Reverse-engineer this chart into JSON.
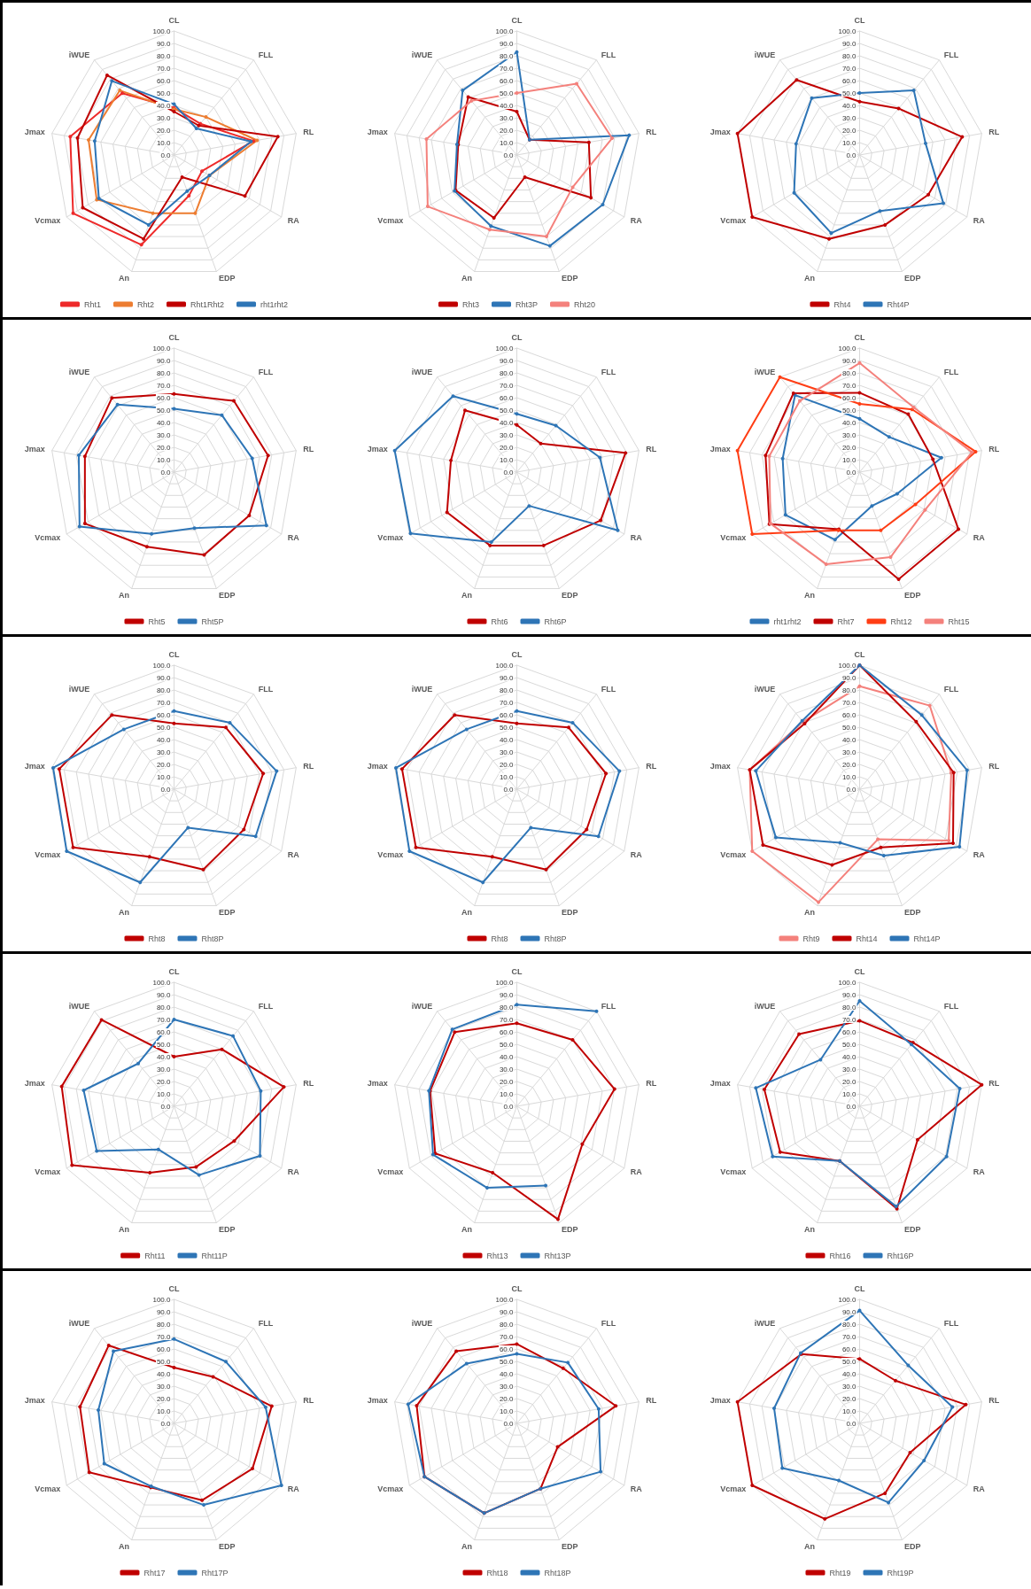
{
  "chart_data": [
    {
      "type": "radar",
      "categories": [
        "CL",
        "FLL",
        "RL",
        "RA",
        "EDP",
        "An",
        "Vcmax",
        "Jmax",
        "iWUE"
      ],
      "ylim": [
        0,
        100
      ],
      "yticks": [
        {
          "value": 0,
          "label": "0.0"
        },
        {
          "value": 10,
          "label": "10.0"
        },
        {
          "value": 20,
          "label": "20.0"
        },
        {
          "value": 30,
          "label": "30.0"
        },
        {
          "value": 40,
          "label": "40.0"
        },
        {
          "value": 50,
          "label": "50.0"
        },
        {
          "value": 60,
          "label": "60.0"
        },
        {
          "value": 70,
          "label": "70.0"
        },
        {
          "value": 80,
          "label": "80.0"
        },
        {
          "value": 90,
          "label": "90.0"
        },
        {
          "value": 100,
          "label": "100.0"
        }
      ],
      "grid": true,
      "legend": "bottom",
      "marker": "circle",
      "series": [
        {
          "name": "Rht1",
          "color": "#ee2a2a",
          "values": [
            38,
            33,
            65,
            26,
            35,
            77,
            94,
            85,
            65
          ]
        },
        {
          "name": "Rht2",
          "color": "#ed7d31",
          "values": [
            37,
            40,
            68,
            33,
            50,
            50,
            72,
            70,
            68
          ]
        },
        {
          "name": "Rht1Rht2",
          "color": "#c00000",
          "values": [
            35,
            31,
            85,
            66,
            19,
            72,
            85,
            79,
            84
          ]
        },
        {
          "name": "rht1rht2",
          "color": "#2e75b6",
          "values": [
            41,
            28,
            63,
            33,
            31,
            60,
            70,
            65,
            78
          ]
        }
      ]
    },
    {
      "type": "radar",
      "categories": [
        "CL",
        "FLL",
        "RL",
        "RA",
        "EDP",
        "An",
        "Vcmax",
        "Jmax",
        "iWUE"
      ],
      "ylim": [
        0,
        100
      ],
      "yticks": [
        {
          "value": 0,
          "label": "0.0"
        },
        {
          "value": 10,
          "label": "10.0"
        },
        {
          "value": 20,
          "label": "20.0"
        },
        {
          "value": 30,
          "label": "30.0"
        },
        {
          "value": 40,
          "label": "40.0"
        },
        {
          "value": 50,
          "label": "50.0"
        },
        {
          "value": 60,
          "label": "60.0"
        },
        {
          "value": 70,
          "label": "70.0"
        },
        {
          "value": 80,
          "label": "80.0"
        },
        {
          "value": 90,
          "label": "90.0"
        },
        {
          "value": 100,
          "label": "100.0"
        }
      ],
      "grid": true,
      "legend": "bottom",
      "marker": "circle",
      "series": [
        {
          "name": "Rht3",
          "color": "#c00000",
          "values": [
            35,
            16,
            59,
            69,
            19,
            54,
            57,
            48,
            61
          ]
        },
        {
          "name": "Rht3P",
          "color": "#2e75b6",
          "values": [
            83,
            16,
            92,
            80,
            78,
            61,
            58,
            49,
            68
          ]
        },
        {
          "name": "Rht20",
          "color": "#f4817c",
          "values": [
            50,
            75,
            78,
            52,
            70,
            64,
            83,
            74,
            57
          ]
        }
      ]
    },
    {
      "type": "radar",
      "categories": [
        "CL",
        "FLL",
        "RL",
        "RA",
        "EDP",
        "An",
        "Vcmax",
        "Jmax",
        "iWUE"
      ],
      "ylim": [
        0,
        100
      ],
      "yticks": [
        {
          "value": 0,
          "label": "0.0"
        },
        {
          "value": 10,
          "label": "10.0"
        },
        {
          "value": 20,
          "label": "20.0"
        },
        {
          "value": 30,
          "label": "30.0"
        },
        {
          "value": 40,
          "label": "40.0"
        },
        {
          "value": 50,
          "label": "50.0"
        },
        {
          "value": 60,
          "label": "60.0"
        },
        {
          "value": 70,
          "label": "70.0"
        },
        {
          "value": 80,
          "label": "80.0"
        },
        {
          "value": 90,
          "label": "90.0"
        },
        {
          "value": 100,
          "label": "100.0"
        }
      ],
      "grid": true,
      "legend": "bottom",
      "marker": "circle",
      "series": [
        {
          "name": "Rht4",
          "color": "#c00000",
          "values": [
            43,
            49,
            84,
            64,
            60,
            72,
            100,
            100,
            79
          ]
        },
        {
          "name": "Rht4P",
          "color": "#2e75b6",
          "values": [
            50,
            68,
            54,
            78,
            48,
            67,
            61,
            52,
            60
          ]
        }
      ]
    },
    {
      "type": "radar",
      "categories": [
        "CL",
        "FLL",
        "RL",
        "RA",
        "EDP",
        "An",
        "Vcmax",
        "Jmax",
        "iWUE"
      ],
      "ylim": [
        0,
        100
      ],
      "yticks": [
        {
          "value": 0,
          "label": "0.0"
        },
        {
          "value": 10,
          "label": "10.0"
        },
        {
          "value": 20,
          "label": "20.0"
        },
        {
          "value": 30,
          "label": "30.0"
        },
        {
          "value": 40,
          "label": "40.0"
        },
        {
          "value": 50,
          "label": "50.0"
        },
        {
          "value": 60,
          "label": "60.0"
        },
        {
          "value": 70,
          "label": "70.0"
        },
        {
          "value": 80,
          "label": "80.0"
        },
        {
          "value": 90,
          "label": "90.0"
        },
        {
          "value": 100,
          "label": "100.0"
        }
      ],
      "grid": true,
      "legend": "bottom",
      "marker": "circle",
      "series": [
        {
          "name": "Rht5",
          "color": "#c00000",
          "values": [
            63,
            75,
            77,
            70,
            71,
            64,
            83,
            73,
            78
          ]
        },
        {
          "name": "Rht5P",
          "color": "#2e75b6",
          "values": [
            51,
            60,
            64,
            86,
            48,
            53,
            88,
            78,
            71
          ]
        }
      ]
    },
    {
      "type": "radar",
      "categories": [
        "CL",
        "FLL",
        "RL",
        "RA",
        "EDP",
        "An",
        "Vcmax",
        "Jmax",
        "iWUE"
      ],
      "ylim": [
        0,
        100
      ],
      "yticks": [
        {
          "value": 0,
          "label": "0.0"
        },
        {
          "value": 10,
          "label": "10.0"
        },
        {
          "value": 20,
          "label": "20.0"
        },
        {
          "value": 30,
          "label": "30.0"
        },
        {
          "value": 40,
          "label": "40.0"
        },
        {
          "value": 50,
          "label": "50.0"
        },
        {
          "value": 60,
          "label": "60.0"
        },
        {
          "value": 70,
          "label": "70.0"
        },
        {
          "value": 80,
          "label": "80.0"
        },
        {
          "value": 90,
          "label": "90.0"
        },
        {
          "value": 100,
          "label": "100.0"
        }
      ],
      "grid": true,
      "legend": "bottom",
      "marker": "circle",
      "series": [
        {
          "name": "Rht6",
          "color": "#c00000",
          "values": [
            38,
            30,
            89,
            78,
            63,
            63,
            65,
            54,
            65
          ]
        },
        {
          "name": "Rht6P",
          "color": "#2e75b6",
          "values": [
            47,
            49,
            68,
            94,
            29,
            60,
            99,
            100,
            80
          ]
        }
      ]
    },
    {
      "type": "radar",
      "categories": [
        "CL",
        "FLL",
        "RL",
        "RA",
        "EDP",
        "An",
        "Vcmax",
        "Jmax",
        "iWUE"
      ],
      "ylim": [
        0,
        100
      ],
      "yticks": [
        {
          "value": 0,
          "label": "0.0"
        },
        {
          "value": 10,
          "label": "10.0"
        },
        {
          "value": 20,
          "label": "20.0"
        },
        {
          "value": 30,
          "label": "30.0"
        },
        {
          "value": 40,
          "label": "40.0"
        },
        {
          "value": 50,
          "label": "50.0"
        },
        {
          "value": 60,
          "label": "60.0"
        },
        {
          "value": 70,
          "label": "70.0"
        },
        {
          "value": 80,
          "label": "80.0"
        },
        {
          "value": 90,
          "label": "90.0"
        },
        {
          "value": 100,
          "label": "100.0"
        }
      ],
      "grid": true,
      "legend": "bottom",
      "marker": "circle",
      "series": [
        {
          "name": "rht1rht2",
          "color": "#2e75b6",
          "values": [
            43,
            37,
            67,
            35,
            29,
            58,
            69,
            63,
            81
          ]
        },
        {
          "name": "Rht7",
          "color": "#c00000",
          "values": [
            64,
            61,
            60,
            92,
            92,
            49,
            84,
            77,
            83
          ]
        },
        {
          "name": "Rht12",
          "color": "#ff3d14",
          "values": [
            55,
            66,
            95,
            52,
            50,
            50,
            100,
            100,
            100
          ]
        },
        {
          "name": "Rht15",
          "color": "#f4817c",
          "values": [
            88,
            68,
            92,
            61,
            73,
            79,
            83,
            74,
            75
          ]
        }
      ]
    },
    {
      "type": "radar",
      "categories": [
        "CL",
        "FLL",
        "RL",
        "RA",
        "EDP",
        "An",
        "Vcmax",
        "Jmax",
        "iWUE"
      ],
      "ylim": [
        0,
        100
      ],
      "yticks": [
        {
          "value": 0,
          "label": "0.0"
        },
        {
          "value": 10,
          "label": "10.0"
        },
        {
          "value": 20,
          "label": "20.0"
        },
        {
          "value": 30,
          "label": "30.0"
        },
        {
          "value": 40,
          "label": "40.0"
        },
        {
          "value": 50,
          "label": "50.0"
        },
        {
          "value": 60,
          "label": "60.0"
        },
        {
          "value": 70,
          "label": "70.0"
        },
        {
          "value": 80,
          "label": "80.0"
        },
        {
          "value": 90,
          "label": "90.0"
        },
        {
          "value": 100,
          "label": "100.0"
        }
      ],
      "grid": true,
      "legend": "bottom",
      "marker": "circle",
      "series": [
        {
          "name": "Rht8",
          "color": "#c00000",
          "values": [
            53,
            65,
            73,
            65,
            69,
            58,
            94,
            94,
            78
          ]
        },
        {
          "name": "Rht8P",
          "color": "#2e75b6",
          "values": [
            63,
            70,
            84,
            76,
            33,
            80,
            100,
            99,
            63
          ]
        }
      ]
    },
    {
      "type": "radar",
      "categories": [
        "CL",
        "FLL",
        "RL",
        "RA",
        "EDP",
        "An",
        "Vcmax",
        "Jmax",
        "iWUE"
      ],
      "ylim": [
        0,
        100
      ],
      "yticks": [
        {
          "value": 0,
          "label": "0.0"
        },
        {
          "value": 10,
          "label": "10.0"
        },
        {
          "value": 20,
          "label": "20.0"
        },
        {
          "value": 30,
          "label": "30.0"
        },
        {
          "value": 40,
          "label": "40.0"
        },
        {
          "value": 50,
          "label": "50.0"
        },
        {
          "value": 60,
          "label": "60.0"
        },
        {
          "value": 70,
          "label": "70.0"
        },
        {
          "value": 80,
          "label": "80.0"
        },
        {
          "value": 90,
          "label": "90.0"
        },
        {
          "value": 100,
          "label": "100.0"
        }
      ],
      "grid": true,
      "legend": "bottom",
      "marker": "circle",
      "series": [
        {
          "name": "Rht8",
          "color": "#c00000",
          "values": [
            53,
            65,
            73,
            65,
            69,
            58,
            94,
            94,
            78
          ]
        },
        {
          "name": "Rht8P",
          "color": "#2e75b6",
          "values": [
            63,
            70,
            84,
            76,
            33,
            80,
            100,
            99,
            63
          ]
        }
      ]
    },
    {
      "type": "radar",
      "categories": [
        "CL",
        "FLL",
        "RL",
        "RA",
        "EDP",
        "An",
        "Vcmax",
        "Jmax",
        "iWUE"
      ],
      "ylim": [
        0,
        100
      ],
      "yticks": [
        {
          "value": 0,
          "label": "0.0"
        },
        {
          "value": 10,
          "label": "10.0"
        },
        {
          "value": 20,
          "label": "20.0"
        },
        {
          "value": 30,
          "label": "30.0"
        },
        {
          "value": 40,
          "label": "40.0"
        },
        {
          "value": 50,
          "label": "50.0"
        },
        {
          "value": 60,
          "label": "60.0"
        },
        {
          "value": 70,
          "label": "70.0"
        },
        {
          "value": 80,
          "label": "80.0"
        },
        {
          "value": 90,
          "label": "90.0"
        },
        {
          "value": 100,
          "label": "100.0"
        }
      ],
      "grid": true,
      "legend": "bottom",
      "marker": "circle",
      "series": [
        {
          "name": "Rht9",
          "color": "#f4817c",
          "values": [
            83,
            88,
            75,
            83,
            43,
            97,
            100,
            90,
            71
          ]
        },
        {
          "name": "Rht14",
          "color": "#c00000",
          "values": [
            100,
            71,
            77,
            87,
            50,
            65,
            90,
            90,
            69
          ]
        },
        {
          "name": "Rht14P",
          "color": "#2e75b6",
          "values": [
            100,
            78,
            88,
            93,
            57,
            46,
            78,
            85,
            72
          ]
        }
      ]
    },
    {
      "type": "radar",
      "categories": [
        "CL",
        "FLL",
        "RL",
        "RA",
        "EDP",
        "An",
        "Vcmax",
        "Jmax",
        "iWUE"
      ],
      "ylim": [
        0,
        100
      ],
      "yticks": [
        {
          "value": 0,
          "label": "0.0"
        },
        {
          "value": 10,
          "label": "10.0"
        },
        {
          "value": 20,
          "label": "20.0"
        },
        {
          "value": 30,
          "label": "30.0"
        },
        {
          "value": 40,
          "label": "40.0"
        },
        {
          "value": 50,
          "label": "50.0"
        },
        {
          "value": 60,
          "label": "60.0"
        },
        {
          "value": 70,
          "label": "70.0"
        },
        {
          "value": 80,
          "label": "80.0"
        },
        {
          "value": 90,
          "label": "90.0"
        },
        {
          "value": 100,
          "label": "100.0"
        }
      ],
      "grid": true,
      "legend": "bottom",
      "marker": "circle",
      "series": [
        {
          "name": "Rht11",
          "color": "#c00000",
          "values": [
            40,
            60,
            90,
            56,
            52,
            57,
            95,
            92,
            91
          ]
        },
        {
          "name": "Rht11P",
          "color": "#2e75b6",
          "values": [
            70,
            74,
            71,
            80,
            59,
            37,
            72,
            74,
            45
          ]
        }
      ]
    },
    {
      "type": "radar",
      "categories": [
        "CL",
        "FLL",
        "RL",
        "RA",
        "EDP",
        "An",
        "Vcmax",
        "Jmax",
        "iWUE"
      ],
      "ylim": [
        0,
        100
      ],
      "yticks": [
        {
          "value": 0,
          "label": "0.0"
        },
        {
          "value": 10,
          "label": "10.0"
        },
        {
          "value": 20,
          "label": "20.0"
        },
        {
          "value": 30,
          "label": "30.0"
        },
        {
          "value": 40,
          "label": "40.0"
        },
        {
          "value": 50,
          "label": "50.0"
        },
        {
          "value": 60,
          "label": "60.0"
        },
        {
          "value": 70,
          "label": "70.0"
        },
        {
          "value": 80,
          "label": "80.0"
        },
        {
          "value": 90,
          "label": "90.0"
        },
        {
          "value": 100,
          "label": "100.0"
        }
      ],
      "grid": true,
      "legend": "bottom",
      "marker": "circle",
      "series": [
        {
          "name": "Rht13",
          "color": "#c00000",
          "values": [
            67,
            70,
            80,
            61,
            97,
            57,
            76,
            71,
            78
          ]
        },
        {
          "name": "Rht13P",
          "color": "#2e75b6",
          "values": [
            82,
            100,
            null,
            null,
            68,
            70,
            78,
            72,
            81
          ]
        }
      ]
    },
    {
      "type": "radar",
      "categories": [
        "CL",
        "FLL",
        "RL",
        "RA",
        "EDP",
        "An",
        "Vcmax",
        "Jmax",
        "iWUE"
      ],
      "ylim": [
        0,
        100
      ],
      "yticks": [
        {
          "value": 0,
          "label": "0.0"
        },
        {
          "value": 10,
          "label": "10.0"
        },
        {
          "value": 20,
          "label": "20.0"
        },
        {
          "value": 30,
          "label": "30.0"
        },
        {
          "value": 40,
          "label": "40.0"
        },
        {
          "value": 50,
          "label": "50.0"
        },
        {
          "value": 60,
          "label": "60.0"
        },
        {
          "value": 70,
          "label": "70.0"
        },
        {
          "value": 80,
          "label": "80.0"
        },
        {
          "value": 90,
          "label": "90.0"
        },
        {
          "value": 100,
          "label": "100.0"
        }
      ],
      "grid": true,
      "legend": "bottom",
      "marker": "circle",
      "series": [
        {
          "name": "Rht16",
          "color": "#c00000",
          "values": [
            69,
            67,
            100,
            54,
            88,
            47,
            74,
            78,
            76
          ]
        },
        {
          "name": "Rht16P",
          "color": "#2e75b6",
          "values": [
            85,
            65,
            82,
            81,
            86,
            47,
            81,
            85,
            49
          ]
        }
      ]
    },
    {
      "type": "radar",
      "categories": [
        "CL",
        "FLL",
        "RL",
        "RA",
        "EDP",
        "An",
        "Vcmax",
        "Jmax",
        "iWUE"
      ],
      "ylim": [
        0,
        100
      ],
      "yticks": [
        {
          "value": 0,
          "label": "0.0"
        },
        {
          "value": 10,
          "label": "10.0"
        },
        {
          "value": 20,
          "label": "20.0"
        },
        {
          "value": 30,
          "label": "30.0"
        },
        {
          "value": 40,
          "label": "40.0"
        },
        {
          "value": 50,
          "label": "50.0"
        },
        {
          "value": 60,
          "label": "60.0"
        },
        {
          "value": 70,
          "label": "70.0"
        },
        {
          "value": 80,
          "label": "80.0"
        },
        {
          "value": 90,
          "label": "90.0"
        },
        {
          "value": 100,
          "label": "100.0"
        }
      ],
      "grid": true,
      "legend": "bottom",
      "marker": "circle",
      "series": [
        {
          "name": "Rht17",
          "color": "#c00000",
          "values": [
            45,
            49,
            80,
            73,
            66,
            55,
            79,
            77,
            82
          ]
        },
        {
          "name": "Rht17P",
          "color": "#2e75b6",
          "values": [
            68,
            65,
            75,
            100,
            70,
            54,
            65,
            62,
            76
          ]
        }
      ]
    },
    {
      "type": "radar",
      "categories": [
        "CL",
        "FLL",
        "RL",
        "RA",
        "EDP",
        "An",
        "Vcmax",
        "Jmax",
        "iWUE"
      ],
      "ylim": [
        0,
        100
      ],
      "yticks": [
        {
          "value": 0,
          "label": "0.0"
        },
        {
          "value": 10,
          "label": "10.0"
        },
        {
          "value": 20,
          "label": "20.0"
        },
        {
          "value": 30,
          "label": "30.0"
        },
        {
          "value": 40,
          "label": "40.0"
        },
        {
          "value": 50,
          "label": "50.0"
        },
        {
          "value": 60,
          "label": "60.0"
        },
        {
          "value": 70,
          "label": "70.0"
        },
        {
          "value": 80,
          "label": "80.0"
        },
        {
          "value": 90,
          "label": "90.0"
        },
        {
          "value": 100,
          "label": "100.0"
        }
      ],
      "grid": true,
      "legend": "bottom",
      "marker": "circle",
      "series": [
        {
          "name": "Rht18",
          "color": "#c00000",
          "values": [
            64,
            58,
            81,
            38,
            56,
            77,
            86,
            82,
            76
          ]
        },
        {
          "name": "Rht18P",
          "color": "#2e75b6",
          "values": [
            56,
            64,
            67,
            78,
            56,
            77,
            86,
            89,
            63
          ]
        }
      ]
    },
    {
      "type": "radar",
      "categories": [
        "CL",
        "FLL",
        "RL",
        "RA",
        "EDP",
        "An",
        "Vcmax",
        "Jmax",
        "iWUE"
      ],
      "ylim": [
        0,
        100
      ],
      "yticks": [
        {
          "value": 0,
          "label": "0.0"
        },
        {
          "value": 10,
          "label": "10.0"
        },
        {
          "value": 20,
          "label": "20.0"
        },
        {
          "value": 30,
          "label": "30.0"
        },
        {
          "value": 40,
          "label": "40.0"
        },
        {
          "value": 50,
          "label": "50.0"
        },
        {
          "value": 60,
          "label": "60.0"
        },
        {
          "value": 70,
          "label": "70.0"
        },
        {
          "value": 80,
          "label": "80.0"
        },
        {
          "value": 90,
          "label": "90.0"
        },
        {
          "value": 100,
          "label": "100.0"
        }
      ],
      "grid": true,
      "legend": "bottom",
      "marker": "circle",
      "series": [
        {
          "name": "Rht19",
          "color": "#c00000",
          "values": [
            52,
            45,
            87,
            47,
            60,
            82,
            100,
            100,
            73
          ]
        },
        {
          "name": "Rht19P",
          "color": "#2e75b6",
          "values": [
            91,
            61,
            76,
            60,
            68,
            49,
            72,
            70,
            74
          ]
        }
      ]
    }
  ]
}
